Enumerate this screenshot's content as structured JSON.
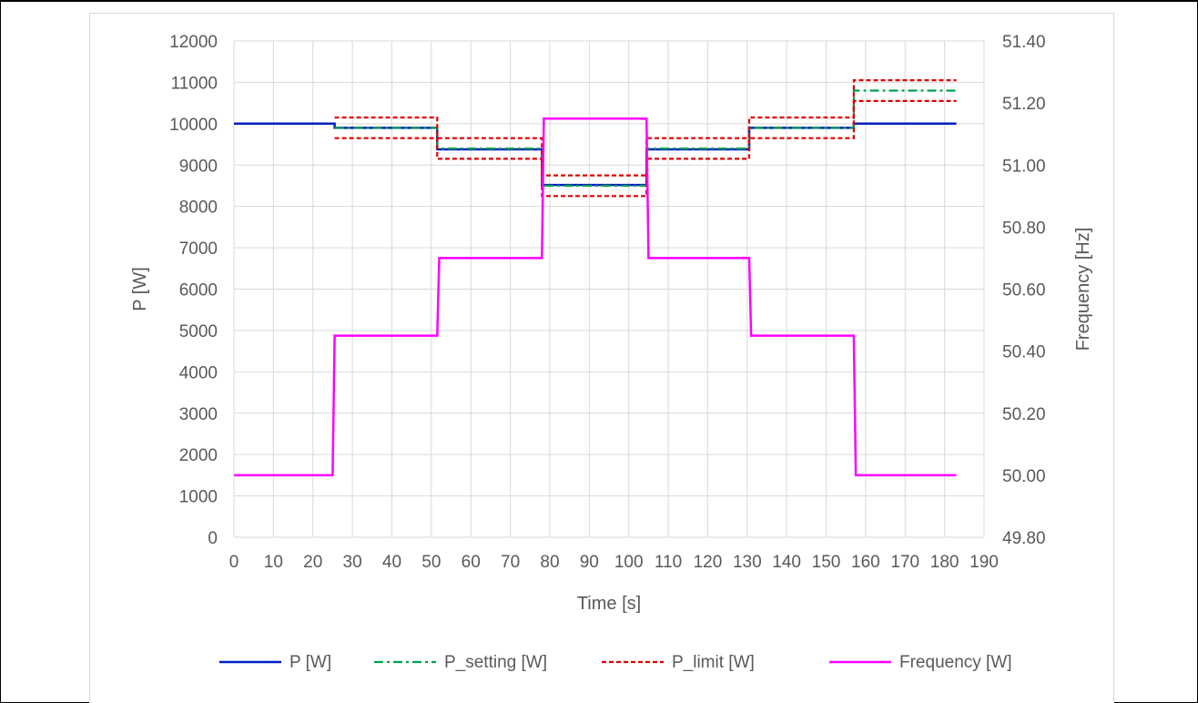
{
  "chart_data": {
    "type": "line",
    "title": "",
    "xlabel": "Time [s]",
    "ylabel": "P [W]",
    "y2label": "Frequency [Hz]",
    "xlim": [
      0,
      190
    ],
    "ylim": [
      0,
      12000
    ],
    "y2lim": [
      49.8,
      51.4
    ],
    "x_ticks": [
      "0",
      "10",
      "20",
      "30",
      "40",
      "50",
      "60",
      "70",
      "80",
      "90",
      "100",
      "110",
      "120",
      "130",
      "140",
      "150",
      "160",
      "170",
      "180",
      "190"
    ],
    "y_ticks": [
      "0",
      "1000",
      "2000",
      "3000",
      "4000",
      "5000",
      "6000",
      "7000",
      "8000",
      "9000",
      "10000",
      "11000",
      "12000"
    ],
    "y2_ticks": [
      "49.80",
      "50.00",
      "50.20",
      "50.40",
      "50.60",
      "50.80",
      "51.00",
      "51.20",
      "51.40"
    ],
    "grid": true,
    "legend_position": "bottom",
    "series": [
      {
        "name": "P [W]",
        "axis": "left",
        "color": "#0020c0",
        "style": "solid",
        "x": [
          0,
          20,
          25.5,
          25.5,
          51.5,
          51.5,
          78,
          78,
          104.5,
          104.5,
          130.5,
          130.5,
          157,
          157,
          183
        ],
        "y": [
          10000,
          10000,
          10000,
          9900,
          9900,
          9380,
          9380,
          8520,
          8520,
          9380,
          9380,
          9900,
          9900,
          10000,
          10000
        ]
      },
      {
        "name": "P_setting [W]",
        "axis": "left",
        "color": "#00a050",
        "style": "dashdot",
        "x": [
          25.5,
          51.5,
          51.5,
          78,
          78,
          104.5,
          104.5,
          130.5,
          130.5,
          157,
          157,
          183
        ],
        "y": [
          9900,
          9900,
          9400,
          9400,
          8500,
          8500,
          9400,
          9400,
          9900,
          9900,
          10800,
          10800
        ]
      },
      {
        "name": "P_limit [W]",
        "axis": "left",
        "color": "#e00000",
        "style": "dashed",
        "x": [
          25.5,
          51.5,
          51.5,
          78,
          78,
          104.5,
          104.5,
          130.5,
          130.5,
          157,
          157,
          183
        ],
        "y": [
          10150,
          10150,
          9650,
          9650,
          8750,
          8750,
          9650,
          9650,
          10150,
          10150,
          11050,
          11050
        ]
      },
      {
        "name": "P_limit [W]",
        "axis": "left",
        "color": "#e00000",
        "style": "dashed",
        "legend": false,
        "x": [
          25.5,
          51.5,
          51.5,
          78,
          78,
          104.5,
          104.5,
          130.5,
          130.5,
          157,
          157,
          183
        ],
        "y": [
          9650,
          9650,
          9150,
          9150,
          8250,
          8250,
          9150,
          9150,
          9650,
          9650,
          10550,
          10550
        ]
      },
      {
        "name": "Frequency [W]",
        "axis": "right",
        "color": "#ff00ff",
        "style": "solid",
        "x": [
          0,
          25,
          25.5,
          51.5,
          52,
          78,
          78.5,
          104.5,
          105,
          130.5,
          131,
          157,
          157.5,
          183
        ],
        "y": [
          50.0,
          50.0,
          50.45,
          50.45,
          50.7,
          50.7,
          51.15,
          51.15,
          50.7,
          50.7,
          50.45,
          50.45,
          50.0,
          50.0
        ]
      }
    ]
  }
}
